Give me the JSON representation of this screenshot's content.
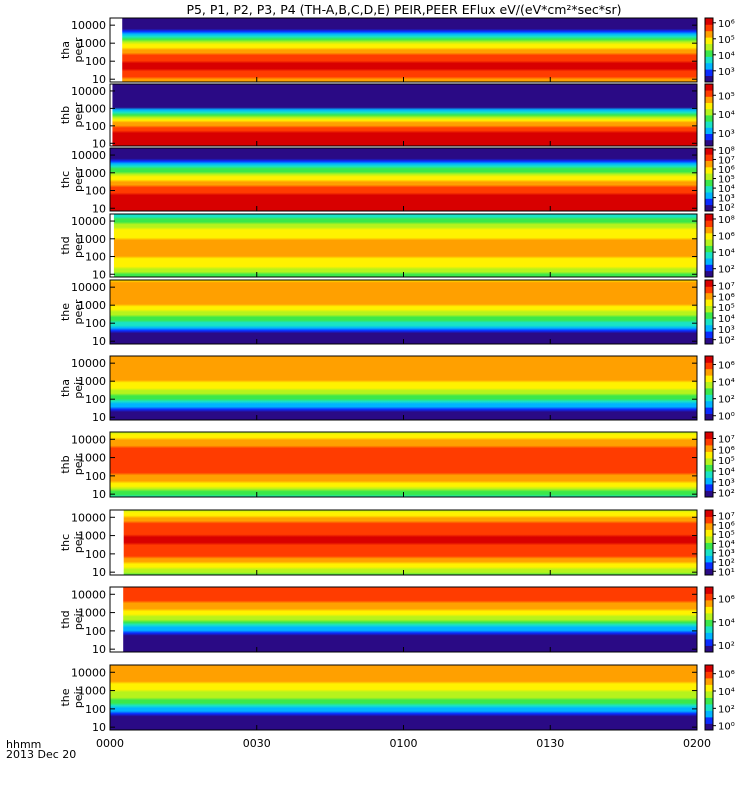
{
  "chart_data": {
    "type": "heatmap",
    "title": "P5, P1, P2, P3, P4 (TH-A,B,C,D,E) PEIR,PEER EFlux eV/(eV*cm²*sec*sr)",
    "xaxis": {
      "label_line1": "hhmm",
      "label_line2": "2013 Dec 20",
      "range_minutes": [
        0,
        120
      ],
      "ticks": [
        {
          "minute": 0,
          "label": "0000"
        },
        {
          "minute": 30,
          "label": "0030"
        },
        {
          "minute": 60,
          "label": "0100"
        },
        {
          "minute": 90,
          "label": "0130"
        },
        {
          "minute": 120,
          "label": "0200"
        }
      ]
    },
    "yaxis": {
      "scale": "log",
      "unit": "eV",
      "range": [
        7,
        25000
      ]
    },
    "colorbar": {
      "scale": "log",
      "colors": [
        "#2a0a85",
        "#0a2cff",
        "#00b4ff",
        "#19e3c6",
        "#3be84a",
        "#b6f31c",
        "#fff200",
        "#ffa000",
        "#ff3c00",
        "#d80000"
      ]
    },
    "panels": [
      {
        "id": "tha_peer",
        "name": "tha",
        "species": "peer",
        "series_name": "tha peer",
        "yticks": [
          "10000",
          "1000",
          "100",
          "10"
        ],
        "ytick_values": [
          10000,
          1000,
          100,
          10
        ],
        "colorbar_ticks": [
          "10⁶",
          "10⁵",
          "10⁴",
          "10³"
        ],
        "colorbar_exp": [
          6,
          5,
          4,
          3
        ],
        "colorbar_range": [
          2.3,
          6.3
        ],
        "data_start_minute": 2.5,
        "peak_log_flux": 6.0,
        "flux_peak_energy_eV": 60
      },
      {
        "id": "thb_peer",
        "name": "thb",
        "species": "peer",
        "series_name": "thb peer",
        "yticks": [
          "10000",
          "1000",
          "100",
          "10"
        ],
        "ytick_values": [
          10000,
          1000,
          100,
          10
        ],
        "colorbar_ticks": [
          "10⁵",
          "10⁴",
          "10³"
        ],
        "colorbar_exp": [
          5,
          4,
          3
        ],
        "colorbar_range": [
          2.3,
          5.6
        ],
        "data_start_minute": 0.5,
        "peak_log_flux": 5.6,
        "flux_peak_energy_eV": 15
      },
      {
        "id": "thc_peer",
        "name": "thc",
        "species": "peer",
        "series_name": "thc peer",
        "yticks": [
          "10000",
          "1000",
          "100",
          "10"
        ],
        "ytick_values": [
          10000,
          1000,
          100,
          10
        ],
        "colorbar_ticks": [
          "10⁸",
          "10⁷",
          "10⁶",
          "10⁵",
          "10⁴",
          "10³",
          "10²"
        ],
        "colorbar_exp": [
          8,
          7,
          6,
          5,
          4,
          3,
          2
        ],
        "colorbar_range": [
          1.6,
          8.2
        ],
        "data_start_minute": 0,
        "peak_log_flux": 8.0,
        "flux_peak_energy_eV": 12
      },
      {
        "id": "thd_peer",
        "name": "thd",
        "species": "peer",
        "series_name": "thd peer",
        "yticks": [
          "10000",
          "1000",
          "100",
          "10"
        ],
        "ytick_values": [
          10000,
          1000,
          100,
          10
        ],
        "colorbar_ticks": [
          "10⁸",
          "10⁶",
          "10⁴",
          "10²"
        ],
        "colorbar_exp": [
          8,
          6,
          4,
          2
        ],
        "colorbar_range": [
          1.0,
          8.6
        ],
        "data_start_minute": 0.8,
        "peak_log_flux": 6.6,
        "flux_peak_energy_eV": 300
      },
      {
        "id": "the_peer",
        "name": "the",
        "species": "peer",
        "series_name": "the peer",
        "yticks": [
          "10000",
          "1000",
          "100",
          "10"
        ],
        "ytick_values": [
          10000,
          1000,
          100,
          10
        ],
        "colorbar_ticks": [
          "10⁷",
          "10⁶",
          "10⁵",
          "10⁴",
          "10³",
          "10²"
        ],
        "colorbar_exp": [
          7,
          6,
          5,
          4,
          3,
          2
        ],
        "colorbar_range": [
          1.6,
          7.5
        ],
        "data_start_minute": 0,
        "peak_log_flux": 6.2,
        "flux_peak_energy_eV": 5000
      },
      {
        "id": "tha_peir",
        "name": "tha",
        "species": "peir",
        "series_name": "tha peir",
        "yticks": [
          "10000",
          "1000",
          "100",
          "10"
        ],
        "ytick_values": [
          10000,
          1000,
          100,
          10
        ],
        "colorbar_ticks": [
          "10⁶",
          "10⁴",
          "10²",
          "10⁰"
        ],
        "colorbar_exp": [
          6,
          4,
          2,
          0
        ],
        "colorbar_range": [
          -0.5,
          7.0
        ],
        "data_start_minute": 0,
        "peak_log_flux": 5.5,
        "flux_peak_energy_eV": 8000
      },
      {
        "id": "thb_peir",
        "name": "thb",
        "species": "peir",
        "series_name": "thb peir",
        "yticks": [
          "10000",
          "1000",
          "100",
          "10"
        ],
        "ytick_values": [
          10000,
          1000,
          100,
          10
        ],
        "colorbar_ticks": [
          "10⁷",
          "10⁶",
          "10⁵",
          "10⁴",
          "10³",
          "10²"
        ],
        "colorbar_exp": [
          7,
          6,
          5,
          4,
          3,
          2
        ],
        "colorbar_range": [
          1.6,
          7.6
        ],
        "data_start_minute": 0,
        "peak_log_flux": 7.0,
        "flux_peak_energy_eV": 700
      },
      {
        "id": "thc_peir",
        "name": "thc",
        "species": "peir",
        "series_name": "thc peir",
        "yticks": [
          "10000",
          "1000",
          "100",
          "10"
        ],
        "ytick_values": [
          10000,
          1000,
          100,
          10
        ],
        "colorbar_ticks": [
          "10⁷",
          "10⁶",
          "10⁵",
          "10⁴",
          "10³",
          "10²",
          "10¹"
        ],
        "colorbar_exp": [
          7,
          6,
          5,
          4,
          3,
          2,
          1
        ],
        "colorbar_range": [
          0.6,
          7.6
        ],
        "data_start_minute": 2.8,
        "peak_log_flux": 7.0,
        "flux_peak_energy_eV": 600
      },
      {
        "id": "thd_peir",
        "name": "thd",
        "species": "peir",
        "series_name": "thd peir",
        "yticks": [
          "10000",
          "1000",
          "100",
          "10"
        ],
        "ytick_values": [
          10000,
          1000,
          100,
          10
        ],
        "colorbar_ticks": [
          "10⁶",
          "10⁴",
          "10²"
        ],
        "colorbar_exp": [
          6,
          4,
          2
        ],
        "colorbar_range": [
          1.4,
          7.0
        ],
        "data_start_minute": 2.7,
        "peak_log_flux": 6.3,
        "flux_peak_energy_eV": 15000
      },
      {
        "id": "the_peir",
        "name": "the",
        "species": "peir",
        "series_name": "the peir",
        "yticks": [
          "10000",
          "1000",
          "100",
          "10"
        ],
        "ytick_values": [
          10000,
          1000,
          100,
          10
        ],
        "colorbar_ticks": [
          "10⁶",
          "10⁴",
          "10²",
          "10⁰"
        ],
        "colorbar_exp": [
          6,
          4,
          2,
          0
        ],
        "colorbar_range": [
          -0.5,
          7.0
        ],
        "data_start_minute": 0,
        "peak_log_flux": 5.4,
        "flux_peak_energy_eV": 15000
      }
    ]
  }
}
